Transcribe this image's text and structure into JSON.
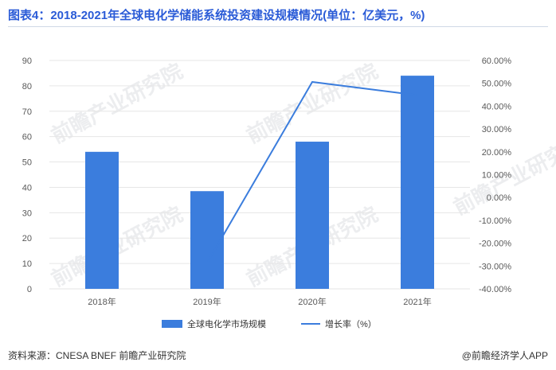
{
  "header": {
    "title": "图表4：2018-2021年全球电化学储能系统投资建设规模情况(单位：亿美元，%)"
  },
  "footer": {
    "source": "资料来源：CNESA BNEF 前瞻产业研究院",
    "brand": "@前瞻经济学人APP"
  },
  "watermark": {
    "text": "前瞻产业研究院"
  },
  "colors": {
    "bar": "#3b7ddd",
    "line": "#3b7ddd",
    "title": "#2a5bd7",
    "axis_text": "#595959",
    "grid": "#e6e6e6"
  },
  "chart_data": {
    "type": "bar",
    "categories": [
      "2018年",
      "2019年",
      "2020年",
      "2021年"
    ],
    "series": [
      {
        "name": "全球电化学市场规模",
        "type": "bar",
        "axis": "left",
        "values": [
          54,
          38.5,
          58,
          84
        ]
      },
      {
        "name": "增长率（%）",
        "type": "line",
        "axis": "right",
        "values": [
          null,
          -28.7,
          50.6,
          44.8
        ]
      }
    ],
    "ylim": [
      0,
      90
    ],
    "y_ticks": [
      "0",
      "10",
      "20",
      "30",
      "40",
      "50",
      "60",
      "70",
      "80",
      "90"
    ],
    "y2lim": [
      -40,
      60
    ],
    "y2_ticks": [
      "-40.00%",
      "-30.00%",
      "-20.00%",
      "-10.00%",
      "0.00%",
      "10.00%",
      "20.00%",
      "30.00%",
      "40.00%",
      "50.00%",
      "60.00%"
    ],
    "grid": true,
    "legend_position": "bottom"
  }
}
